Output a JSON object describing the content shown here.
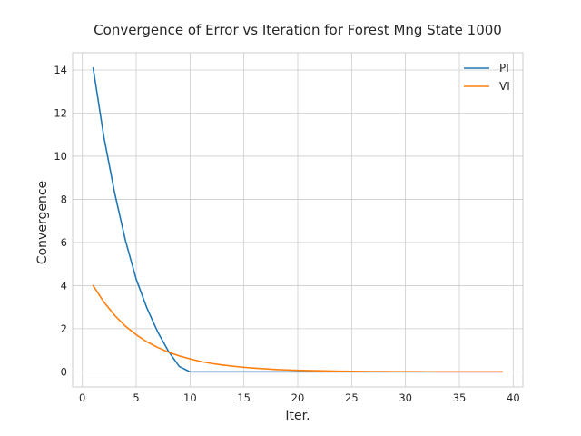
{
  "chart_data": {
    "type": "line",
    "title": "Convergence of Error vs Iteration for Forest Mng State 1000",
    "xlabel": "Iter.",
    "ylabel": "Convergence",
    "xlim": [
      -0.9,
      40.9
    ],
    "ylim": [
      -0.7,
      14.8
    ],
    "xticks": [
      0,
      5,
      10,
      15,
      20,
      25,
      30,
      35,
      40
    ],
    "yticks": [
      0,
      2,
      4,
      6,
      8,
      10,
      12,
      14
    ],
    "grid": true,
    "legend": "top-right",
    "series": [
      {
        "name": "PI",
        "color": "#1f77b4",
        "x": [
          1,
          2,
          3,
          4,
          5,
          6,
          7,
          8,
          9,
          10,
          11,
          12,
          13,
          14,
          15,
          16,
          17,
          18,
          19,
          20,
          21,
          22,
          23,
          24,
          25,
          26,
          27,
          28,
          29,
          30,
          31,
          32,
          33,
          34,
          35,
          36,
          37,
          38,
          39
        ],
        "y": [
          14.1,
          10.9,
          8.3,
          6.1,
          4.3,
          2.95,
          1.85,
          0.95,
          0.25,
          0.0,
          0,
          0,
          0,
          0,
          0,
          0,
          0,
          0,
          0,
          0,
          0,
          0,
          0,
          0,
          0,
          0,
          0,
          0,
          0,
          0,
          0,
          0,
          0,
          0,
          0,
          0,
          0,
          0,
          0
        ]
      },
      {
        "name": "VI",
        "color": "#ff7f0e",
        "x": [
          1,
          2,
          3,
          4,
          5,
          6,
          7,
          8,
          9,
          10,
          11,
          12,
          13,
          14,
          15,
          16,
          17,
          18,
          19,
          20,
          21,
          22,
          23,
          24,
          25,
          26,
          27,
          28,
          29,
          30,
          31,
          32,
          33,
          34,
          35,
          36,
          37,
          38,
          39
        ],
        "y": [
          4.0,
          3.24,
          2.62,
          2.12,
          1.72,
          1.39,
          1.13,
          0.91,
          0.74,
          0.6,
          0.48,
          0.39,
          0.32,
          0.26,
          0.21,
          0.17,
          0.14,
          0.11,
          0.09,
          0.07,
          0.06,
          0.05,
          0.04,
          0.03,
          0.025,
          0.02,
          0.016,
          0.013,
          0.01,
          0.008,
          0.007,
          0.005,
          0.004,
          0.003,
          0.003,
          0.002,
          0.002,
          0.001,
          0.001
        ]
      }
    ]
  }
}
